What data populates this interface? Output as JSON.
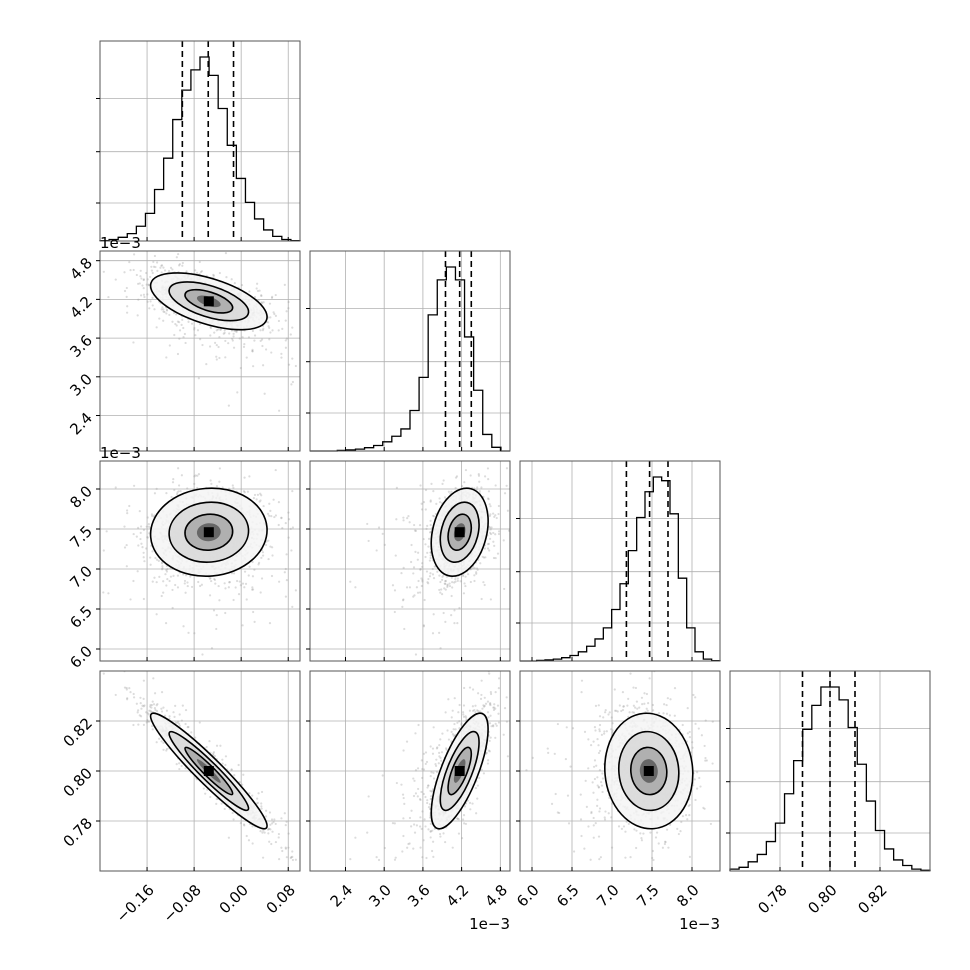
{
  "chart_data": {
    "type": "corner",
    "title": "",
    "parameters": [
      {
        "label": "",
        "range": [
          -0.24,
          0.1
        ],
        "ticks": [
          -0.16,
          -0.08,
          0.0,
          0.08
        ],
        "tick_labels": [
          "−0.16",
          "−0.08",
          "0.00",
          "0.08"
        ],
        "offset_label": "",
        "quantiles": [
          -0.1,
          -0.056,
          -0.013
        ]
      },
      {
        "label": "",
        "range": [
          1.85,
          4.95
        ],
        "ticks": [
          2.4,
          3.0,
          3.6,
          4.2,
          4.8
        ],
        "tick_labels": [
          "2.4",
          "3.0",
          "3.6",
          "4.2",
          "4.8"
        ],
        "offset_label": "1e−3",
        "quantiles": [
          3.95,
          4.17,
          4.35
        ]
      },
      {
        "label": "",
        "range": [
          5.85,
          8.35
        ],
        "ticks": [
          6.0,
          6.5,
          7.0,
          7.5,
          8.0
        ],
        "tick_labels": [
          "6.0",
          "6.5",
          "7.0",
          "7.5",
          "8.0"
        ],
        "offset_label": "1e−3",
        "quantiles": [
          7.18,
          7.47,
          7.7
        ]
      },
      {
        "label": "",
        "range": [
          0.76,
          0.84
        ],
        "ticks": [
          0.78,
          0.8,
          0.82
        ],
        "tick_labels": [
          "0.78",
          "0.80",
          "0.82"
        ],
        "offset_label": "",
        "quantiles": [
          0.789,
          0.8,
          0.81
        ]
      }
    ],
    "histograms": [
      [
        0.002,
        0.008,
        0.02,
        0.04,
        0.08,
        0.15,
        0.28,
        0.45,
        0.66,
        0.82,
        0.93,
        1.0,
        0.9,
        0.72,
        0.52,
        0.34,
        0.21,
        0.12,
        0.06,
        0.025,
        0.008,
        0.002
      ],
      [
        0.0,
        0.0,
        0.0,
        0.003,
        0.006,
        0.01,
        0.018,
        0.03,
        0.05,
        0.08,
        0.12,
        0.22,
        0.4,
        0.74,
        0.93,
        1.0,
        0.93,
        0.62,
        0.33,
        0.09,
        0.02,
        0.0
      ],
      [
        0.0,
        0.0,
        0.003,
        0.006,
        0.01,
        0.018,
        0.03,
        0.05,
        0.08,
        0.12,
        0.18,
        0.28,
        0.42,
        0.6,
        0.78,
        0.92,
        1.0,
        0.98,
        0.8,
        0.45,
        0.18,
        0.05,
        0.01,
        0.002
      ],
      [
        0.01,
        0.02,
        0.05,
        0.09,
        0.16,
        0.26,
        0.42,
        0.6,
        0.77,
        0.9,
        1.0,
        1.0,
        0.93,
        0.78,
        0.58,
        0.38,
        0.22,
        0.12,
        0.06,
        0.03,
        0.01,
        0.004
      ]
    ],
    "scatter_points_per_panel": 1500,
    "grid": true
  }
}
